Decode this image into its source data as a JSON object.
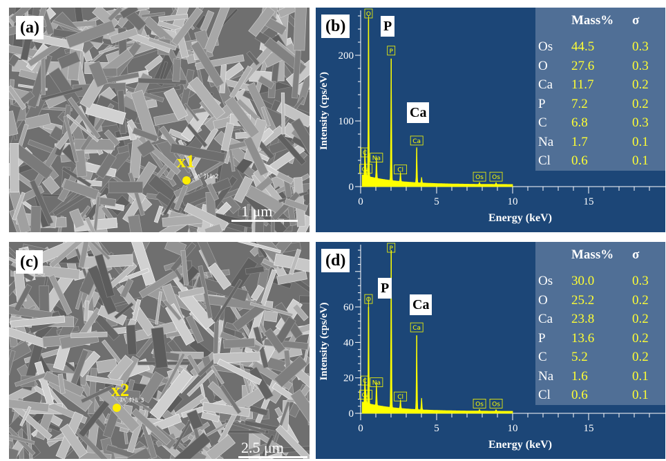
{
  "panels": {
    "a": {
      "label": "(a)",
      "spot_label": "x1",
      "spot_tag": "ｽﾍﾟｸﾄﾙ 2",
      "scale": "1 μm"
    },
    "b": {
      "label": "(b)",
      "peak_labels": [
        "P",
        "Ca"
      ]
    },
    "c": {
      "label": "(c)",
      "spot_label": "x2",
      "spot_tag": "ｽﾍﾟｸﾄﾙ 3",
      "scale": "2.5 μm"
    },
    "d": {
      "label": "(d)",
      "peak_labels": [
        "P",
        "Ca"
      ]
    }
  },
  "tables": {
    "header": {
      "mass": "Mass%",
      "sigma": "σ"
    },
    "b": [
      {
        "el": "Os",
        "mass": "44.5",
        "sigma": "0.3"
      },
      {
        "el": "O",
        "mass": "27.6",
        "sigma": "0.3"
      },
      {
        "el": "Ca",
        "mass": "11.7",
        "sigma": "0.2"
      },
      {
        "el": "P",
        "mass": "7.2",
        "sigma": "0.2"
      },
      {
        "el": "C",
        "mass": "6.8",
        "sigma": "0.3"
      },
      {
        "el": "Na",
        "mass": "1.7",
        "sigma": "0.1"
      },
      {
        "el": "Cl",
        "mass": "0.6",
        "sigma": "0.1"
      }
    ],
    "d": [
      {
        "el": "Os",
        "mass": "30.0",
        "sigma": "0.3"
      },
      {
        "el": "O",
        "mass": "25.2",
        "sigma": "0.2"
      },
      {
        "el": "Ca",
        "mass": "23.8",
        "sigma": "0.2"
      },
      {
        "el": "P",
        "mass": "13.6",
        "sigma": "0.2"
      },
      {
        "el": "C",
        "mass": "5.2",
        "sigma": "0.2"
      },
      {
        "el": "Na",
        "mass": "1.6",
        "sigma": "0.1"
      },
      {
        "el": "Cl",
        "mass": "0.6",
        "sigma": "0.1"
      }
    ]
  },
  "colors": {
    "eds_bg": "#1c4677",
    "spectrum": "#ffff00",
    "table_bg": "#506f96"
  },
  "chart_data": [
    {
      "type": "line",
      "panel": "b",
      "xlabel": "Energy (keV)",
      "ylabel": "Intensity (cps/eV)",
      "xlim": [
        0,
        20
      ],
      "ylim": [
        0,
        260
      ],
      "xticks": [
        0,
        5,
        10,
        15
      ],
      "yticks": [
        0,
        100,
        200
      ],
      "peaks": [
        {
          "x": 0.28,
          "y": 40,
          "label": "C"
        },
        {
          "x": 0.34,
          "y": 15,
          "label": "Ca"
        },
        {
          "x": 0.52,
          "y": 255,
          "label": "O"
        },
        {
          "x": 1.04,
          "y": 32,
          "label": "Na"
        },
        {
          "x": 2.01,
          "y": 195,
          "label": "P"
        },
        {
          "x": 2.62,
          "y": 14,
          "label": "Cl"
        },
        {
          "x": 3.69,
          "y": 58,
          "label": "Ca"
        },
        {
          "x": 4.01,
          "y": 9,
          "label": ""
        },
        {
          "x": 7.82,
          "y": 3,
          "label": "Os"
        },
        {
          "x": 8.91,
          "y": 3,
          "label": "Os"
        }
      ]
    },
    {
      "type": "line",
      "panel": "d",
      "xlabel": "Energy (keV)",
      "ylabel": "Intensity (cps/eV)",
      "xlim": [
        0,
        20
      ],
      "ylim": [
        0,
        92
      ],
      "xticks": [
        0,
        5,
        10,
        15
      ],
      "yticks": [
        0,
        20,
        40,
        60
      ],
      "peaks": [
        {
          "x": 0.28,
          "y": 14,
          "label": "C"
        },
        {
          "x": 0.34,
          "y": 6,
          "label": "Ca"
        },
        {
          "x": 0.52,
          "y": 60,
          "label": "O"
        },
        {
          "x": 1.04,
          "y": 13,
          "label": "Na"
        },
        {
          "x": 2.01,
          "y": 92,
          "label": "P"
        },
        {
          "x": 2.62,
          "y": 5,
          "label": "Cl"
        },
        {
          "x": 3.69,
          "y": 44,
          "label": "Ca"
        },
        {
          "x": 4.01,
          "y": 7,
          "label": ""
        },
        {
          "x": 7.82,
          "y": 1,
          "label": "Os"
        },
        {
          "x": 8.91,
          "y": 1,
          "label": "Os"
        }
      ]
    }
  ]
}
